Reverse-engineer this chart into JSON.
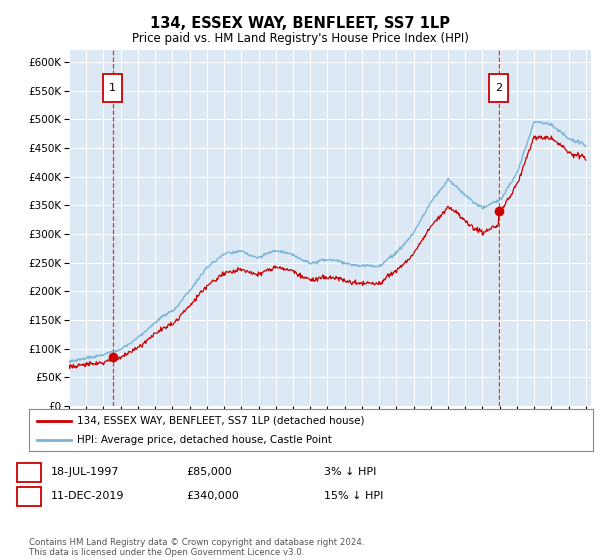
{
  "title": "134, ESSEX WAY, BENFLEET, SS7 1LP",
  "subtitle": "Price paid vs. HM Land Registry's House Price Index (HPI)",
  "legend_line1": "134, ESSEX WAY, BENFLEET, SS7 1LP (detached house)",
  "legend_line2": "HPI: Average price, detached house, Castle Point",
  "annotation1_date": "18-JUL-1997",
  "annotation1_price": "£85,000",
  "annotation1_hpi": "3% ↓ HPI",
  "annotation2_date": "11-DEC-2019",
  "annotation2_price": "£340,000",
  "annotation2_hpi": "15% ↓ HPI",
  "copyright": "Contains HM Land Registry data © Crown copyright and database right 2024.\nThis data is licensed under the Open Government Licence v3.0.",
  "hpi_color": "#7ab5d8",
  "price_color": "#cc0000",
  "plot_bg_color": "#dce9f5",
  "marker1_year": 1997.54,
  "marker1_value": 85000,
  "marker2_year": 2019.95,
  "marker2_value": 340000,
  "ylim_min": 0,
  "ylim_max": 620000,
  "ytick_step": 50000,
  "xmin": 1995.0,
  "xmax": 2025.3
}
